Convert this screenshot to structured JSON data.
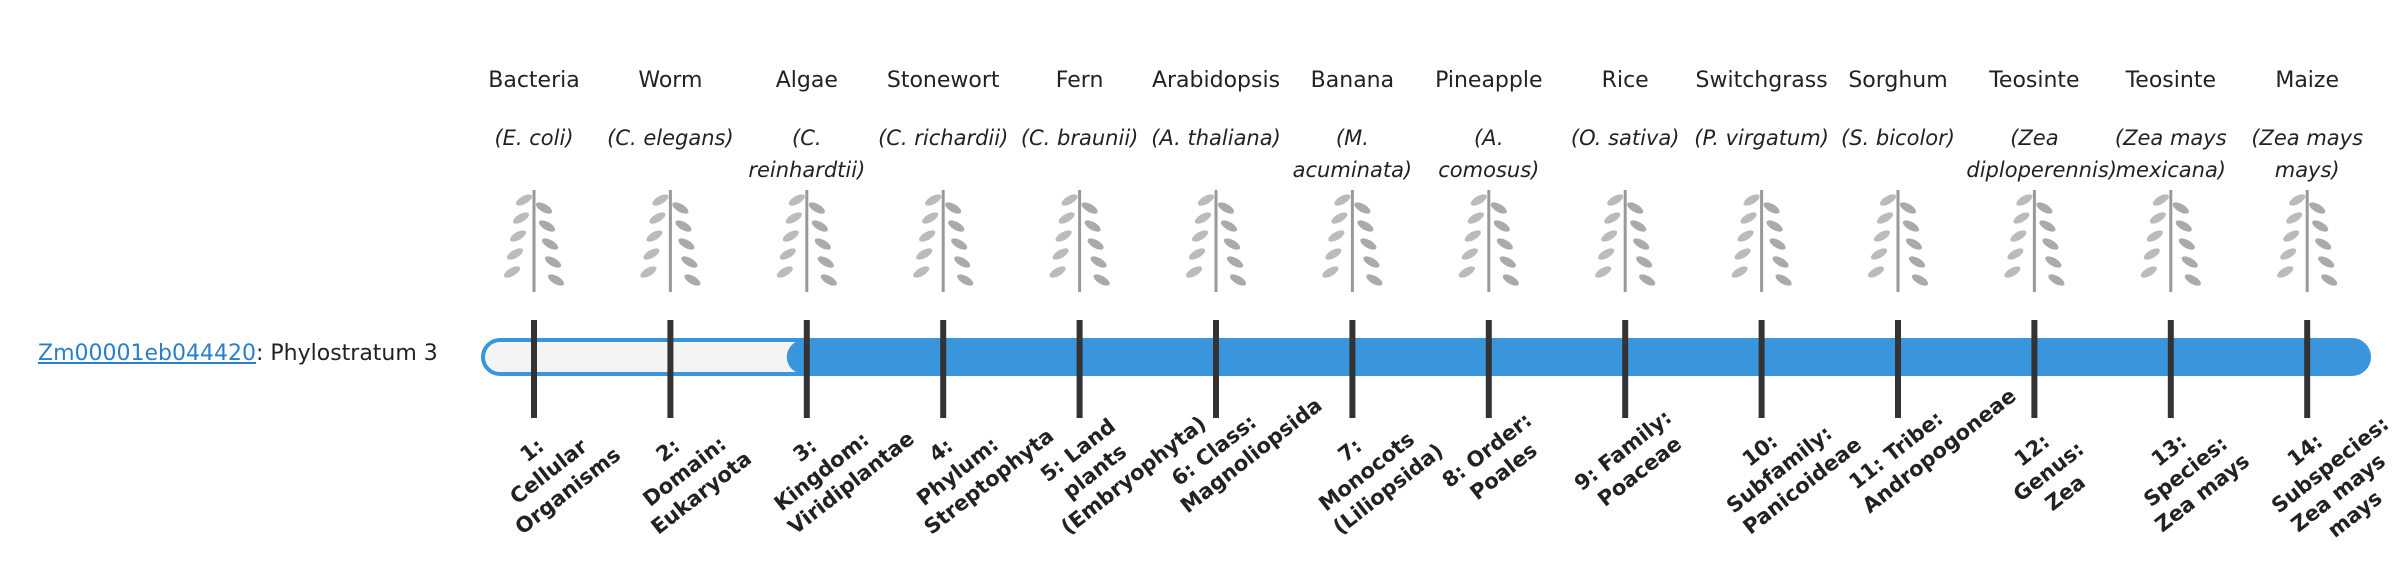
{
  "gene": {
    "id": "Zm00001eb044420",
    "separator": ": ",
    "label": "Phylostratum 3",
    "phylostratum": 3
  },
  "organisms": [
    {
      "name": "Bacteria",
      "species": "(E. coli)",
      "stratum": "1: Cellular Organisms"
    },
    {
      "name": "Worm",
      "species": "(C. elegans)",
      "stratum": "2: Domain: Eukaryota"
    },
    {
      "name": "Algae",
      "species": "(C. reinhardtii)",
      "stratum": "3: Kingdom: Viridiplantae"
    },
    {
      "name": "Stonewort",
      "species": "(C. richardii)",
      "stratum": "4: Phylum: Streptophyta"
    },
    {
      "name": "Fern",
      "species": "(C. braunii)",
      "stratum": "5: Land plants (Embryophyta)"
    },
    {
      "name": "Arabidopsis",
      "species": "(A. thaliana)",
      "stratum": "6: Class: Magnoliopsida"
    },
    {
      "name": "Banana",
      "species": "(M. acuminata)",
      "stratum": "7: Monocots (Liliopsida)"
    },
    {
      "name": "Pineapple",
      "species": "(A. comosus)",
      "stratum": "8: Order: Poales"
    },
    {
      "name": "Rice",
      "species": "(O. sativa)",
      "stratum": "9: Family: Poaceae"
    },
    {
      "name": "Switchgrass",
      "species": "(P. virgatum)",
      "stratum": "10: Subfamily: Panicoideae"
    },
    {
      "name": "Sorghum",
      "species": "(S. bicolor)",
      "stratum": "11: Tribe: Andropogoneae"
    },
    {
      "name": "Teosinte",
      "species": "(Zea diploperennis)",
      "stratum": "12: Genus: Zea"
    },
    {
      "name": "Teosinte",
      "species": "(Zea mays mexicana)",
      "stratum": "13: Species: Zea mays"
    },
    {
      "name": "Maize",
      "species": "(Zea mays mays)",
      "stratum": "14: Subspecies: Zea mays mays"
    }
  ]
}
